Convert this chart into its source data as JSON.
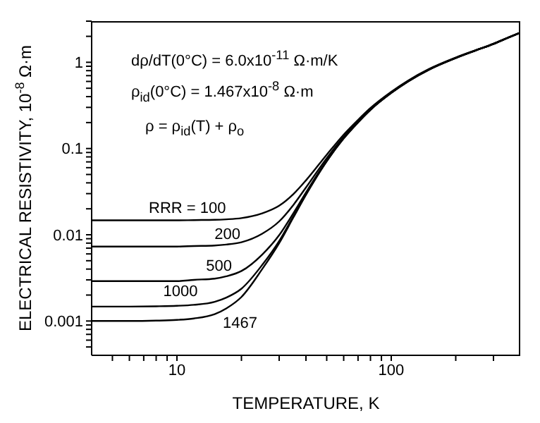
{
  "chart_data": {
    "type": "line",
    "xlabel": "TEMPERATURE, K",
    "ylabel": "ELECTRICAL RESISTIVITY, 10$^{-8}$ Ω·m",
    "annotations": [
      "dρ/dT(0°C) = 6.0x10$^{-11}$ Ω·m/K",
      "ρ$_{id}$(0°C) = 1.467x10$^{-8}$ Ω·m",
      "ρ = ρ$_{id}$(T) + ρ$_{o}$"
    ],
    "log": "xy",
    "grid": false,
    "legend": false,
    "marker": "none",
    "line_style": "solid",
    "x": [
      4,
      6,
      8,
      10,
      12,
      15,
      17,
      20,
      25,
      30,
      35,
      40,
      50,
      60,
      70,
      80,
      100,
      120,
      150,
      200,
      250,
      300,
      350,
      400
    ],
    "xlim": [
      4,
      400
    ],
    "xticks": [
      {
        "value": 5,
        "label": null
      },
      {
        "value": 6,
        "label": null
      },
      {
        "value": 7,
        "label": null
      },
      {
        "value": 8,
        "label": null
      },
      {
        "value": 9,
        "label": null
      },
      10,
      {
        "value": 20,
        "label": null
      },
      {
        "value": 30,
        "label": null
      },
      {
        "value": 40,
        "label": null
      },
      {
        "value": 50,
        "label": null
      },
      {
        "value": 60,
        "label": null
      },
      {
        "value": 70,
        "label": null
      },
      {
        "value": 80,
        "label": null
      },
      {
        "value": 90,
        "label": null
      },
      100,
      {
        "value": 200,
        "label": null
      },
      {
        "value": 300,
        "label": null
      }
    ],
    "ylim": [
      0.0004,
      3
    ],
    "yticks": [
      {
        "value": 0.0005,
        "label": null
      },
      {
        "value": 0.0006,
        "label": null
      },
      {
        "value": 0.0007,
        "label": null
      },
      {
        "value": 0.0008,
        "label": null
      },
      {
        "value": 0.0009,
        "label": null
      },
      0.001,
      {
        "value": 0.002,
        "label": null
      },
      {
        "value": 0.003,
        "label": null
      },
      {
        "value": 0.004,
        "label": null
      },
      {
        "value": 0.005,
        "label": null
      },
      {
        "value": 0.006,
        "label": null
      },
      {
        "value": 0.007,
        "label": null
      },
      {
        "value": 0.008,
        "label": null
      },
      {
        "value": 0.009,
        "label": null
      },
      0.01,
      {
        "value": 0.02,
        "label": null
      },
      {
        "value": 0.03,
        "label": null
      },
      {
        "value": 0.04,
        "label": null
      },
      {
        "value": 0.05,
        "label": null
      },
      {
        "value": 0.06,
        "label": null
      },
      {
        "value": 0.07,
        "label": null
      },
      {
        "value": 0.08,
        "label": null
      },
      {
        "value": 0.09,
        "label": null
      },
      0.1,
      {
        "value": 0.2,
        "label": null
      },
      {
        "value": 0.3,
        "label": null
      },
      {
        "value": 0.4,
        "label": null
      },
      {
        "value": 0.5,
        "label": null
      },
      {
        "value": 0.6,
        "label": null
      },
      {
        "value": 0.7,
        "label": null
      },
      {
        "value": 0.8,
        "label": null
      },
      {
        "value": 0.9,
        "label": null
      },
      1,
      {
        "value": 2,
        "label": null
      },
      {
        "value": 3,
        "label": null
      }
    ],
    "series": [
      {
        "name": "RRR = 100",
        "color": "#000000",
        "values": [
          0.0147,
          0.0147,
          0.0147,
          0.0147,
          0.0148,
          0.0149,
          0.0151,
          0.0156,
          0.0177,
          0.0217,
          0.0297,
          0.0427,
          0.0847,
          0.145,
          0.215,
          0.295,
          0.455,
          0.615,
          0.835,
          1.135,
          1.395,
          1.645,
          1.935,
          2.215
        ]
      },
      {
        "name": "200",
        "color": "#000000",
        "values": [
          0.0073,
          0.0073,
          0.0073,
          0.0073,
          0.0074,
          0.0075,
          0.0077,
          0.0082,
          0.0103,
          0.0143,
          0.0223,
          0.0353,
          0.0773,
          0.137,
          0.207,
          0.287,
          0.447,
          0.607,
          0.827,
          1.127,
          1.387,
          1.637,
          1.927,
          2.207
        ]
      },
      {
        "name": "500",
        "color": "#000000",
        "values": [
          0.0029,
          0.0029,
          0.0029,
          0.0029,
          0.003,
          0.0031,
          0.0033,
          0.0038,
          0.0059,
          0.0099,
          0.0179,
          0.0309,
          0.0729,
          0.133,
          0.203,
          0.283,
          0.443,
          0.603,
          0.823,
          1.123,
          1.383,
          1.633,
          1.923,
          2.203
        ]
      },
      {
        "name": "1000",
        "color": "#000000",
        "values": [
          0.00147,
          0.00147,
          0.00148,
          0.0015,
          0.00154,
          0.00167,
          0.00187,
          0.00237,
          0.00447,
          0.00847,
          0.0165,
          0.0295,
          0.0715,
          0.131,
          0.201,
          0.281,
          0.441,
          0.601,
          0.821,
          1.121,
          1.381,
          1.631,
          1.921,
          2.201
        ]
      },
      {
        "name": "1467",
        "color": "#000000",
        "values": [
          0.001,
          0.001,
          0.00101,
          0.00103,
          0.00107,
          0.0012,
          0.0014,
          0.0019,
          0.004,
          0.008,
          0.016,
          0.029,
          0.071,
          0.131,
          0.201,
          0.281,
          0.441,
          0.601,
          0.821,
          1.121,
          1.381,
          1.631,
          1.921,
          2.201
        ]
      }
    ]
  }
}
